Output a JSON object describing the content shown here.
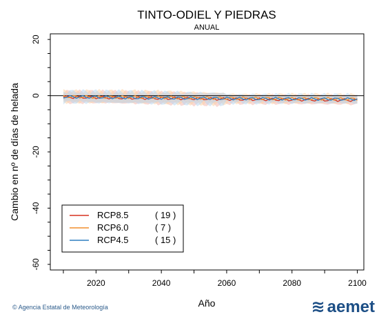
{
  "chart_data": {
    "type": "line",
    "title": "TINTO-ODIEL Y PIEDRAS",
    "subtitle": "ANUAL",
    "xlabel": "Año",
    "ylabel": "Cambio en nº de días de helada",
    "xlim": [
      2006,
      2102
    ],
    "ylim": [
      -62,
      22
    ],
    "xticks": [
      2020,
      2040,
      2060,
      2080,
      2100
    ],
    "yticks": [
      20,
      0,
      -20,
      -40,
      -60
    ],
    "zero_line": 0,
    "legend_position": "bottom-left",
    "series": [
      {
        "name": "RCP8.5",
        "count": "( 19 )",
        "color": "#d7301f",
        "band_color": "#f4b9b0",
        "x": [
          2010,
          2020,
          2030,
          2040,
          2050,
          2060,
          2070,
          2080,
          2090,
          2100
        ],
        "values": [
          -0.5,
          -0.6,
          -0.8,
          -0.9,
          -1.0,
          -1.2,
          -1.3,
          -1.4,
          -1.5,
          -1.6
        ]
      },
      {
        "name": "RCP6.0",
        "count": "(   7 )",
        "color": "#f28e2b",
        "band_color": "#fbd2a8",
        "x": [
          2010,
          2020,
          2030,
          2040,
          2050,
          2060,
          2070,
          2080,
          2090,
          2100
        ],
        "values": [
          -0.3,
          -0.5,
          -0.5,
          -0.6,
          -0.8,
          -0.9,
          -1.0,
          -1.1,
          -1.1,
          -1.2
        ]
      },
      {
        "name": "RCP4.5",
        "count": "( 15 )",
        "color": "#2f7fc1",
        "band_color": "#b8d6ef",
        "x": [
          2010,
          2020,
          2030,
          2040,
          2050,
          2060,
          2070,
          2080,
          2090,
          2100
        ],
        "values": [
          -0.4,
          -0.5,
          -0.7,
          -0.8,
          -0.9,
          -1.0,
          -1.1,
          -1.1,
          -1.2,
          -1.2
        ]
      }
    ]
  },
  "footer": {
    "credit": "© Agencia Estatal de Meteorología",
    "brand": "aemet",
    "brand_icon": "aemet-logo-icon"
  }
}
